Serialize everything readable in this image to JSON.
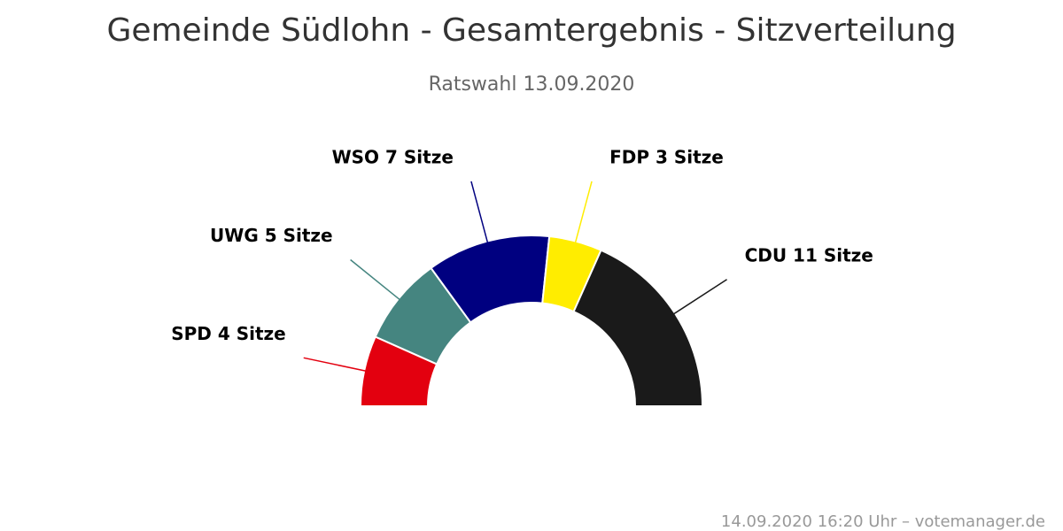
{
  "chart_data": {
    "type": "semi-donut",
    "title": "Gemeinde Südlohn - Gesamtergebnis - Sitzverteilung",
    "subtitle": "Ratswahl 13.09.2020",
    "values": [
      4,
      5,
      7,
      3,
      11
    ],
    "value_labels": [
      "SPD 4 Sitze",
      "UWG 5 Sitze",
      "WSO 7 Sitze",
      "FDP 3 Sitze",
      "CDU 11 Sitze"
    ],
    "colors": [
      "#e3000f",
      "#458580",
      "#000080",
      "#ffed00",
      "#1a1a1a"
    ],
    "credits": "14.09.2020 16:20 Uhr – votemanager.de"
  }
}
